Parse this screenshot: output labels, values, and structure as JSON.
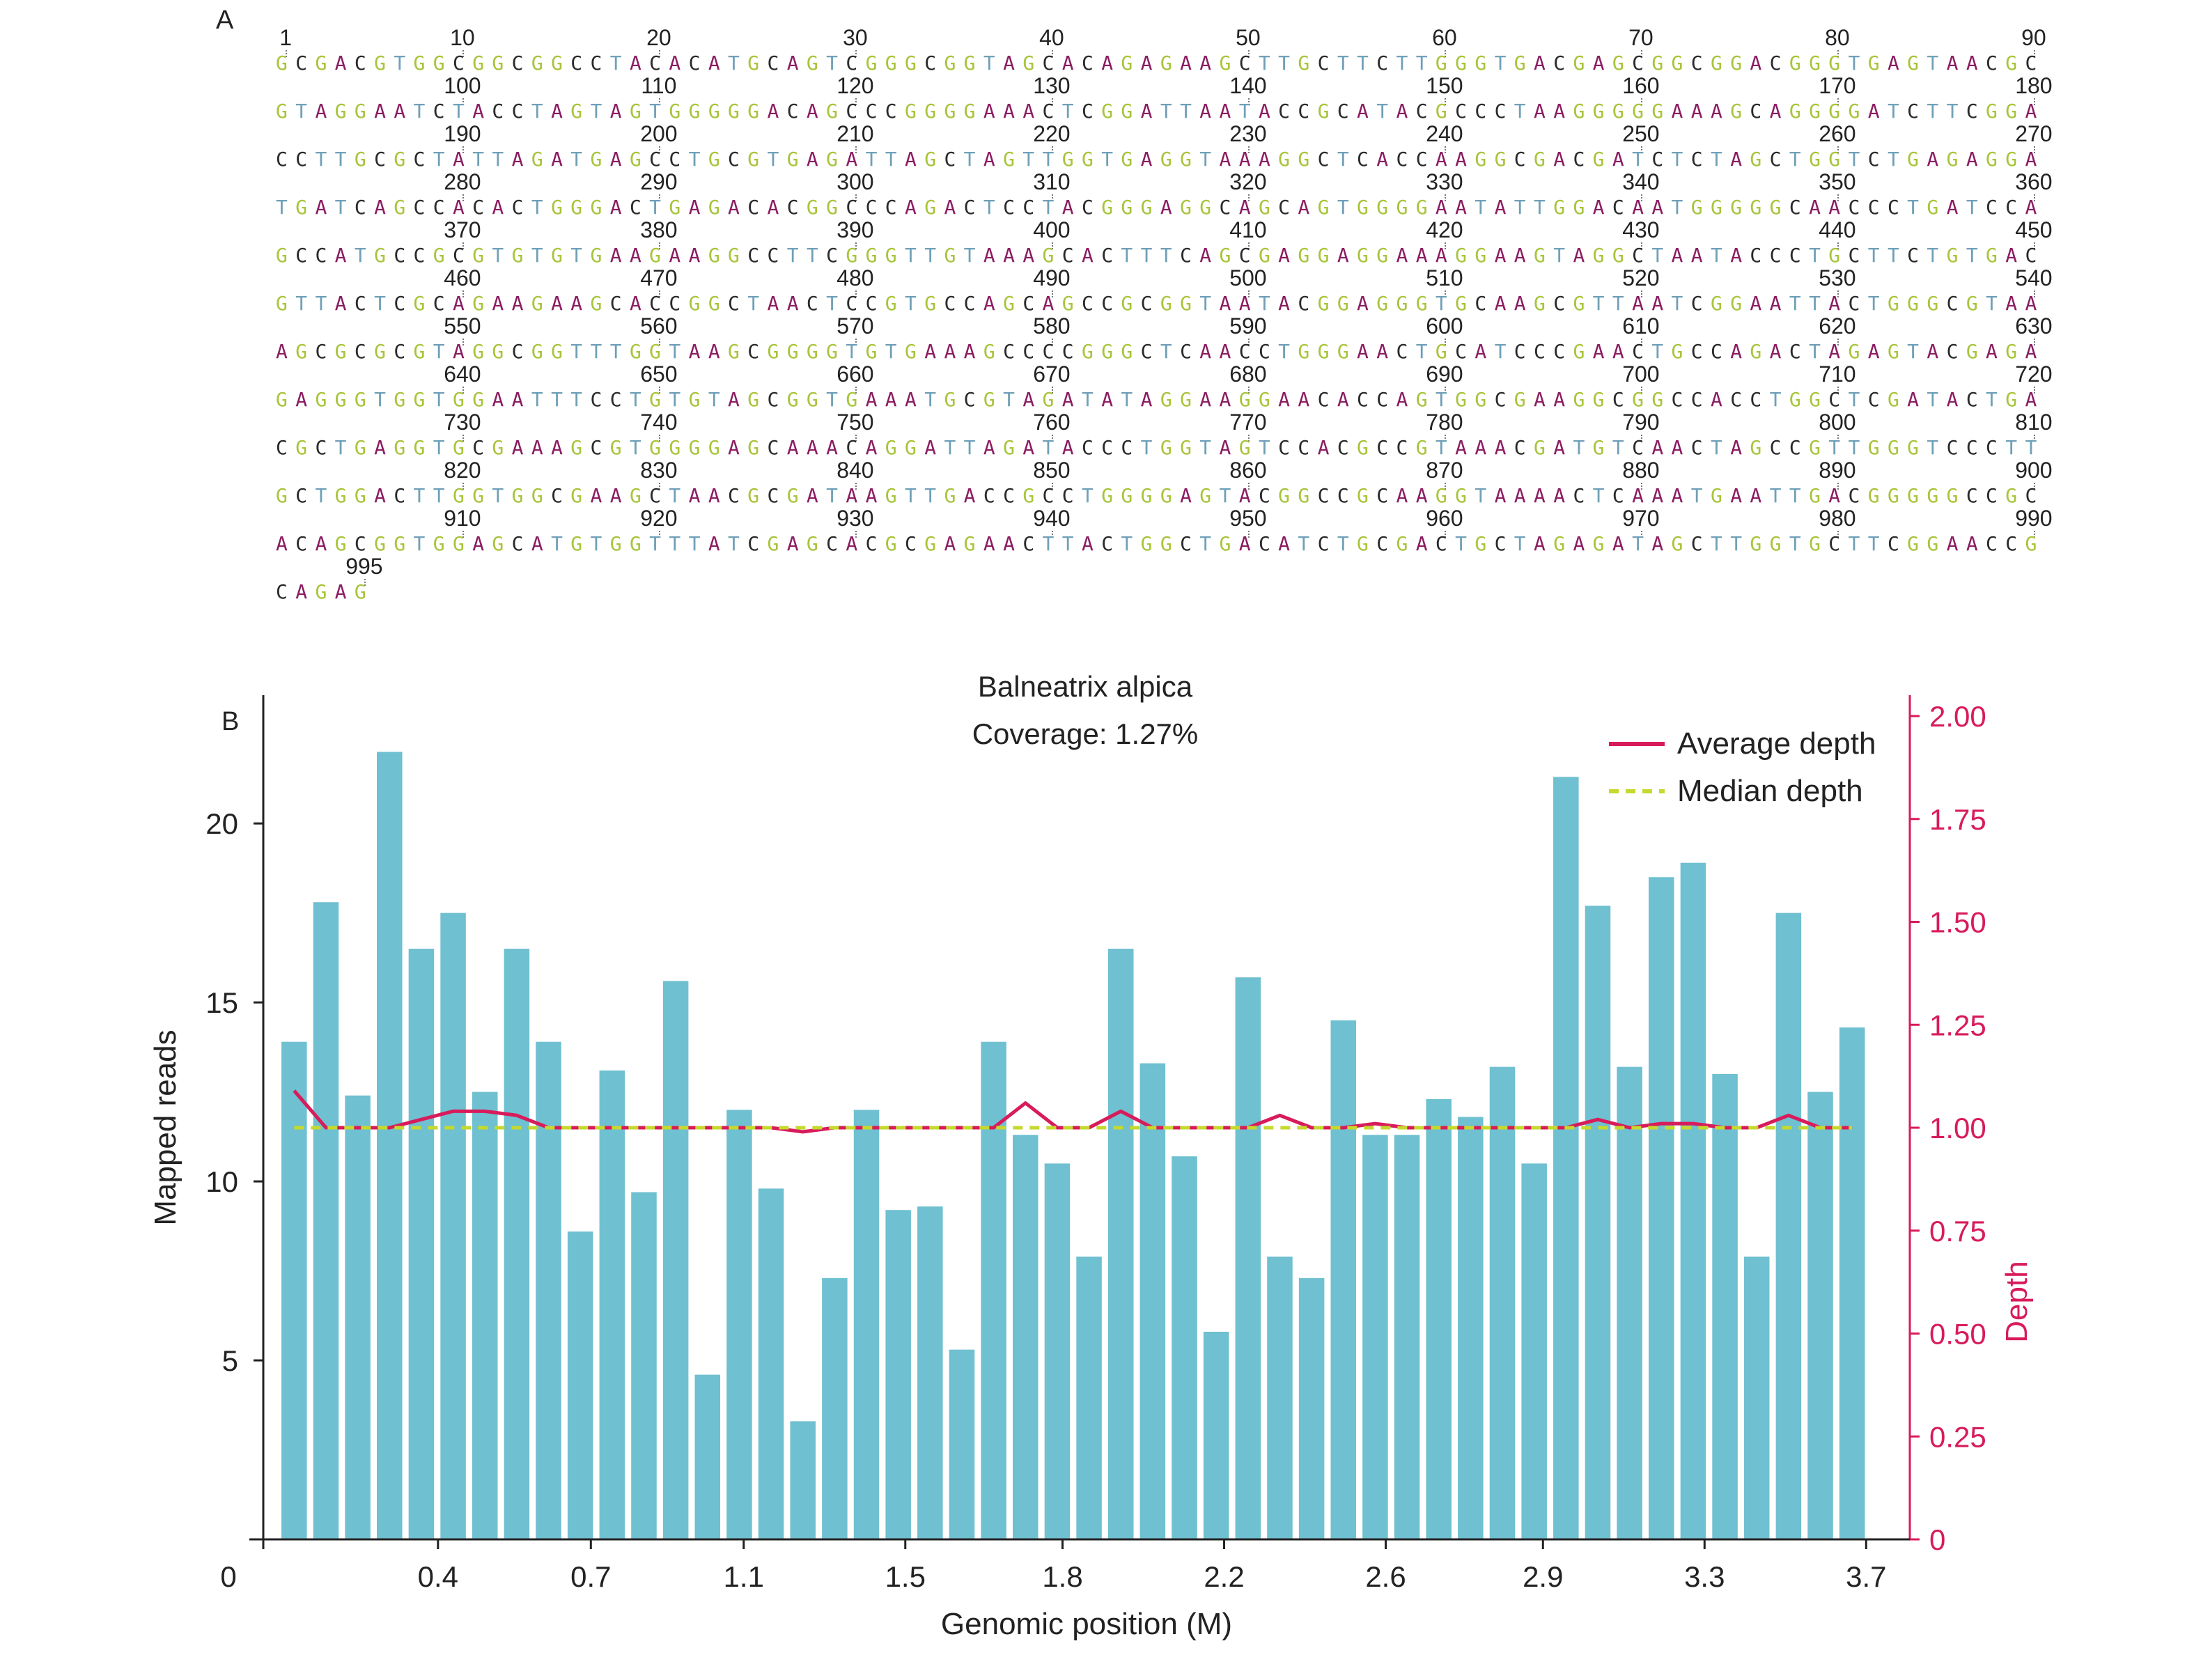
{
  "panel_a": {
    "letter": "A",
    "rows": [
      {
        "label_values": [
          "1",
          "10",
          "20",
          "30",
          "40",
          "50",
          "60",
          "70",
          "80",
          "90"
        ],
        "sequence": "GCGACGTGGCGGCGGCCTACACATGCAGTCGGGCGGTAGCACAGAGAAGCTTGCTTCTTGGGTGACGAGCGGCGGACGGGTGAGTAACGC"
      },
      {
        "label_values": [
          "100",
          "110",
          "120",
          "130",
          "140",
          "150",
          "160",
          "170",
          "180"
        ],
        "sequence": "GTAGGAATCTACCTAGTAGTGGGGGACAGCCCGGGGAAACTCGGATTAATACCGCATACGCCCTAAGGGGGAAAGCAGGGGATCTTCGGA"
      },
      {
        "label_values": [
          "190",
          "200",
          "210",
          "220",
          "230",
          "240",
          "250",
          "260",
          "270"
        ],
        "sequence": "CCTTGCGCTATTAGATGAGCCTGCGTGAGATTAGCTAGTTGGTGAGGTAAAGGCTCACCAAGGCGACGATCTCTAGCTGGTCTGAGAGGA"
      },
      {
        "label_values": [
          "280",
          "290",
          "300",
          "310",
          "320",
          "330",
          "340",
          "350",
          "360"
        ],
        "sequence": "TGATCAGCCACACTGGGACTGAGACACGGCCCAGACTCCTACGGGAGGCAGCAGTGGGGAATATTGGACAATGGGGGCAACCCTGATCCA"
      },
      {
        "label_values": [
          "370",
          "380",
          "390",
          "400",
          "410",
          "420",
          "430",
          "440",
          "450"
        ],
        "sequence": "GCCATGCCGCGTGTGTGAAGAAGGCCTTCGGGTTGTAAAGCACTTTCAGCGAGGAGGAAAGGAAGTAGGCTAATACCCTGCTTCTGTGAC"
      },
      {
        "label_values": [
          "460",
          "470",
          "480",
          "490",
          "500",
          "510",
          "520",
          "530",
          "540"
        ],
        "sequence": "GTTACTCGCAGAAGAAGCACCGGCTAACTCCGTGCCAGCAGCCGCGGTAATACGGAGGGTGCAAGCGTTAATCGGAATTACTGGGCGTAA"
      },
      {
        "label_values": [
          "550",
          "560",
          "570",
          "580",
          "590",
          "600",
          "610",
          "620",
          "630"
        ],
        "sequence": "AGCGCGCGTAGGCGGTTTGGTAAGCGGGGTGTGAAAGCCCCGGGCTCAACCTGGGAACTGCATCCCGAACTGCCAGACTAGAGTACGAGA"
      },
      {
        "label_values": [
          "640",
          "650",
          "660",
          "670",
          "680",
          "690",
          "700",
          "710",
          "720"
        ],
        "sequence": "GAGGGTGGTGGAATTTCCTGTGTAGCGGTGAAATGCGTAGATATAGGAAGGAACACCAGTGGCGAAGGCGGCCACCTGGCTCGATACTGA"
      },
      {
        "label_values": [
          "730",
          "740",
          "750",
          "760",
          "770",
          "780",
          "790",
          "800",
          "810"
        ],
        "sequence": "CGCTGAGGTGCGAAAGCGTGGGGAGCAAACAGGATTAGATACCCTGGTAGTCCACGCCGTAAACGATGTCAACTAGCCGTTGGGTCCCTT"
      },
      {
        "label_values": [
          "820",
          "830",
          "840",
          "850",
          "860",
          "870",
          "880",
          "890",
          "900"
        ],
        "sequence": "GCTGGACTTGGTGGCGAAGCTAACGCGATAAGTTGACCGCCTGGGGAGTACGGCCGCAAGGTAAAACTCAAATGAATTGACGGGGGCCGC"
      },
      {
        "label_values": [
          "910",
          "920",
          "930",
          "940",
          "950",
          "960",
          "970",
          "980",
          "990"
        ],
        "sequence": "ACAGCGGTGGAGCATGTGGTTTATCGAGCACGCGAGAACTTACTGGCTGACATCTGCGACTGCTAGAGATAGCTTGGTGCTTCGGAACCG"
      },
      {
        "label_values": [
          "995"
        ],
        "sequence": "CAGAG"
      }
    ]
  },
  "panel_b": {
    "letter": "B"
  },
  "chart_data": {
    "type": "bar",
    "title": "Balneatrix alpica",
    "subtitle": "Coverage: 1.27%",
    "xlabel": "Genomic position (M)",
    "ylabel": "Mapped reads",
    "y2label": "Depth",
    "xlim": [
      0,
      3.77
    ],
    "ylim": [
      0,
      23
    ],
    "y2lim": [
      0,
      2.0
    ],
    "x_ticks": [
      "0",
      "0.4",
      "0.7",
      "1.1",
      "1.5",
      "1.8",
      "2.2",
      "2.6",
      "2.9",
      "3.3",
      "3.7"
    ],
    "x_tick_positions": [
      0,
      0.4,
      0.75,
      1.1,
      1.47,
      1.83,
      2.2,
      2.57,
      2.93,
      3.3,
      3.67
    ],
    "y_ticks": [
      "5",
      "10",
      "15",
      "20"
    ],
    "y_tick_values": [
      5,
      10,
      15,
      20
    ],
    "y2_ticks": [
      "0",
      "0.25",
      "0.50",
      "0.75",
      "1.00",
      "1.25",
      "1.50",
      "1.75",
      "2.00"
    ],
    "y2_tick_values": [
      0,
      0.25,
      0.5,
      0.75,
      1.0,
      1.25,
      1.5,
      1.75,
      2.0
    ],
    "legend_position": "top-right",
    "bar_x": [
      0.0707,
      0.1435,
      0.2163,
      0.2891,
      0.3619,
      0.4347,
      0.5075,
      0.5803,
      0.6531,
      0.7259,
      0.7987,
      0.8715,
      0.9443,
      1.0171,
      1.0899,
      1.1627,
      1.2355,
      1.3083,
      1.3811,
      1.4539,
      1.5267,
      1.5995,
      1.6723,
      1.7451,
      1.8179,
      1.8907,
      1.9635,
      2.0363,
      2.1091,
      2.1819,
      2.2547,
      2.3275,
      2.4003,
      2.4731,
      2.5459,
      2.6187,
      2.6915,
      2.7643,
      2.8371,
      2.9099,
      2.9827,
      3.0555,
      3.1283,
      3.2011,
      3.2739,
      3.3467,
      3.4195,
      3.4923,
      3.5651,
      3.6379
    ],
    "bars": [
      13.9,
      17.8,
      12.4,
      22.0,
      16.5,
      17.5,
      12.5,
      16.5,
      13.9,
      8.6,
      13.1,
      9.7,
      15.6,
      4.6,
      12.0,
      9.8,
      3.3,
      7.3,
      12.0,
      9.2,
      9.3,
      5.3,
      13.9,
      11.3,
      10.5,
      7.9,
      16.5,
      13.3,
      10.7,
      5.8,
      15.7,
      7.9,
      7.3,
      14.5,
      11.3,
      11.3,
      12.3,
      11.8,
      13.2,
      10.5,
      21.3,
      17.7,
      13.2,
      18.5,
      18.9,
      13.0,
      7.9,
      17.5,
      12.5,
      14.3
    ],
    "series": [
      {
        "name": "Average depth",
        "color": "#d81b5b",
        "style": "solid",
        "values": [
          1.09,
          1.0,
          1.0,
          1.0,
          1.02,
          1.04,
          1.04,
          1.03,
          1.0,
          1.0,
          1.0,
          1.0,
          1.0,
          1.0,
          1.0,
          1.0,
          0.99,
          1.0,
          1.0,
          1.0,
          1.0,
          1.0,
          1.0,
          1.06,
          1.0,
          1.0,
          1.04,
          1.0,
          1.0,
          1.0,
          1.0,
          1.03,
          1.0,
          1.0,
          1.01,
          1.0,
          1.0,
          1.0,
          1.0,
          1.0,
          1.0,
          1.02,
          1.0,
          1.01,
          1.01,
          1.0,
          1.0,
          1.03,
          1.0,
          1.0
        ]
      },
      {
        "name": "Median depth",
        "color": "#c5d92e",
        "style": "dashed",
        "values": [
          1.0,
          1.0,
          1.0,
          1.0,
          1.0,
          1.0,
          1.0,
          1.0,
          1.0,
          1.0,
          1.0,
          1.0,
          1.0,
          1.0,
          1.0,
          1.0,
          1.0,
          1.0,
          1.0,
          1.0,
          1.0,
          1.0,
          1.0,
          1.0,
          1.0,
          1.0,
          1.0,
          1.0,
          1.0,
          1.0,
          1.0,
          1.0,
          1.0,
          1.0,
          1.0,
          1.0,
          1.0,
          1.0,
          1.0,
          1.0,
          1.0,
          1.0,
          1.0,
          1.0,
          1.0,
          1.0,
          1.0,
          1.0,
          1.0,
          1.0
        ]
      }
    ],
    "bar_color": "#6fc0d0",
    "axis_color_left": "#222222",
    "axis_color_right": "#d81b5b"
  }
}
